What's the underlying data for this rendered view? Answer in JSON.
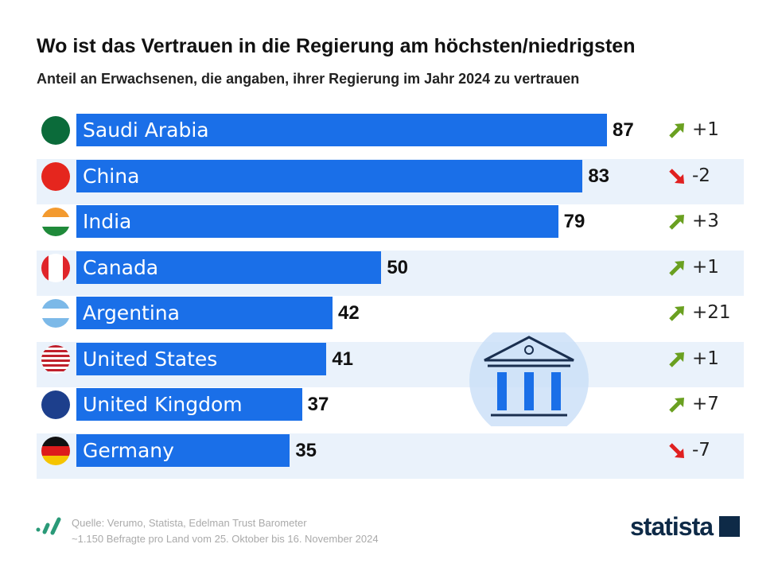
{
  "chart_data": {
    "type": "bar",
    "title": "Wo ist das Vertrauen in die Regierung am höchsten/niedrigsten",
    "subtitle": "Anteil an Erwachsenen, die angaben, ihrer Regierung im Jahr 2024 zu vertrauen",
    "categories": [
      "Saudi Arabia",
      "China",
      "India",
      "Canada",
      "Argentina",
      "United States",
      "United Kingdom",
      "Germany"
    ],
    "values": [
      87,
      83,
      79,
      50,
      42,
      41,
      37,
      35
    ],
    "changes": [
      "+1",
      "-2",
      "+3",
      "+1",
      "+21",
      "+1",
      "+7",
      "-7"
    ],
    "xlim": [
      0,
      100
    ],
    "colors": {
      "bar": "#1a6fe8",
      "up": "#6aa020",
      "down": "#e02020"
    }
  },
  "footer": {
    "source": "Quelle: Verumo, Statista, Edelman Trust Barometer",
    "note": "~1.150 Befragte pro Land vom 25. Oktober bis 16. November 2024",
    "brand": "statista"
  }
}
